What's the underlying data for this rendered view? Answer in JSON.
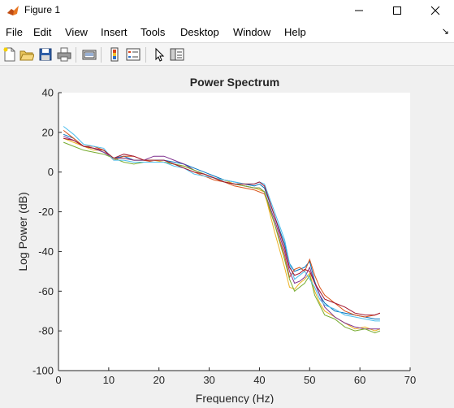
{
  "window": {
    "title": "Figure 1"
  },
  "menu": {
    "items": [
      "File",
      "Edit",
      "View",
      "Insert",
      "Tools",
      "Desktop",
      "Window",
      "Help"
    ]
  },
  "toolbar": {
    "icons": [
      "new-figure-icon",
      "open-file-icon",
      "save-icon",
      "print-icon",
      "print-preview-icon",
      "colorbar-icon",
      "legend-icon",
      "pointer-icon",
      "property-inspector-icon"
    ]
  },
  "colors": {
    "series": [
      "#0072BD",
      "#D95319",
      "#EDB120",
      "#7E2F8E",
      "#77AC30",
      "#4DBEEE",
      "#A2142F"
    ]
  },
  "chart_data": {
    "type": "line",
    "title": "Power Spectrum",
    "xlabel": "Frequency (Hz)",
    "ylabel": "Log Power (dB)",
    "xlim": [
      0,
      70
    ],
    "ylim": [
      -100,
      40
    ],
    "xticks": [
      "0",
      "10",
      "20",
      "30",
      "40",
      "50",
      "60",
      "70"
    ],
    "yticks": [
      "40",
      "20",
      "0",
      "-20",
      "-40",
      "-60",
      "-80",
      "-100"
    ],
    "grid": false,
    "x": [
      1,
      3,
      5,
      7,
      9,
      11,
      13,
      15,
      17,
      19,
      21,
      23,
      25,
      27,
      29,
      31,
      33,
      35,
      37,
      39,
      40,
      41,
      43,
      45,
      46,
      47,
      48,
      49,
      50,
      51,
      52,
      53,
      55,
      57,
      59,
      61,
      63,
      64
    ],
    "series": [
      {
        "values": [
          19,
          17,
          13,
          12,
          10,
          7,
          8,
          6,
          6,
          6,
          6,
          5,
          4,
          2,
          0,
          -2,
          -4,
          -5,
          -6,
          -7,
          -6,
          -8,
          -22,
          -36,
          -46,
          -50,
          -49,
          -48,
          -45,
          -55,
          -62,
          -66,
          -70,
          -71,
          -72,
          -73,
          -74,
          -74
        ]
      },
      {
        "values": [
          21,
          17,
          13,
          13,
          11,
          6,
          8,
          8,
          6,
          5,
          5,
          4,
          2,
          0,
          -2,
          -4,
          -5,
          -7,
          -8,
          -9,
          -10,
          -11,
          -26,
          -42,
          -53,
          -49,
          -48,
          -50,
          -44,
          -52,
          -58,
          -62,
          -66,
          -70,
          -72,
          -73,
          -72,
          -71
        ]
      },
      {
        "values": [
          17,
          15,
          13,
          11,
          11,
          7,
          7,
          6,
          6,
          6,
          5,
          4,
          3,
          1,
          -1,
          -3,
          -4,
          -6,
          -7,
          -8,
          -9,
          -10,
          -30,
          -48,
          -58,
          -59,
          -56,
          -54,
          -51,
          -60,
          -66,
          -70,
          -73,
          -76,
          -79,
          -78,
          -80,
          -79
        ]
      },
      {
        "values": [
          18,
          16,
          13,
          12,
          10,
          7,
          7,
          6,
          6,
          8,
          8,
          6,
          4,
          1,
          -1,
          -3,
          -5,
          -6,
          -7,
          -8,
          -8,
          -10,
          -24,
          -40,
          -50,
          -56,
          -55,
          -53,
          -48,
          -56,
          -62,
          -68,
          -73,
          -76,
          -78,
          -79,
          -79,
          -79
        ]
      },
      {
        "values": [
          15,
          13,
          11,
          10,
          9,
          7,
          5,
          4,
          5,
          5,
          5,
          4,
          3,
          1,
          -1,
          -3,
          -5,
          -6,
          -7,
          -8,
          -8,
          -10,
          -26,
          -44,
          -54,
          -60,
          -58,
          -56,
          -52,
          -62,
          -67,
          -72,
          -74,
          -78,
          -80,
          -79,
          -81,
          -80
        ]
      },
      {
        "values": [
          23,
          19,
          14,
          13,
          12,
          6,
          6,
          5,
          5,
          5,
          5,
          3,
          2,
          -1,
          -2,
          -3,
          -4,
          -5,
          -6,
          -6,
          -5,
          -6,
          -20,
          -34,
          -46,
          -54,
          -52,
          -50,
          -54,
          -58,
          -64,
          -67,
          -69,
          -72,
          -73,
          -74,
          -75,
          -75
        ]
      },
      {
        "values": [
          17,
          16,
          13,
          12,
          11,
          7,
          9,
          8,
          6,
          6,
          6,
          4,
          2,
          0,
          -1,
          -3,
          -5,
          -6,
          -6,
          -6,
          -5,
          -7,
          -22,
          -38,
          -48,
          -52,
          -51,
          -49,
          -50,
          -56,
          -60,
          -64,
          -66,
          -68,
          -71,
          -72,
          -72,
          -71
        ]
      }
    ]
  }
}
